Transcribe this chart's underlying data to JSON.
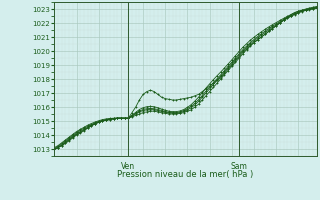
{
  "title": "Pression niveau de la mer( hPa )",
  "ylim": [
    1012.5,
    1023.5
  ],
  "yticks": [
    1013,
    1014,
    1015,
    1016,
    1017,
    1018,
    1019,
    1020,
    1021,
    1022,
    1023
  ],
  "background_color": "#d4eeed",
  "grid_color_minor": "#c8ddd8",
  "grid_color_major": "#aac8be",
  "line_color": "#1a5c1a",
  "ven_label": "Ven",
  "sam_label": "Sam",
  "xlabel": "Pression niveau de la mer( hPa )",
  "n_points": 72,
  "ven_idx": 20,
  "sam_idx": 50,
  "series": [
    [
      1013.0,
      1013.1,
      1013.25,
      1013.4,
      1013.6,
      1013.8,
      1014.0,
      1014.15,
      1014.3,
      1014.5,
      1014.65,
      1014.8,
      1014.9,
      1015.0,
      1015.05,
      1015.1,
      1015.15,
      1015.2,
      1015.2,
      1015.2,
      1015.2,
      1015.6,
      1016.0,
      1016.5,
      1016.9,
      1017.1,
      1017.2,
      1017.1,
      1016.9,
      1016.7,
      1016.6,
      1016.55,
      1016.5,
      1016.5,
      1016.55,
      1016.6,
      1016.65,
      1016.7,
      1016.8,
      1016.9,
      1017.1,
      1017.3,
      1017.5,
      1017.7,
      1017.9,
      1018.1,
      1018.4,
      1018.7,
      1019.0,
      1019.3,
      1019.6,
      1019.9,
      1020.15,
      1020.4,
      1020.6,
      1020.8,
      1021.0,
      1021.2,
      1021.4,
      1021.6,
      1021.8,
      1022.0,
      1022.2,
      1022.4,
      1022.6,
      1022.75,
      1022.85,
      1022.9,
      1022.95,
      1023.0,
      1023.05,
      1023.1
    ],
    [
      1013.0,
      1013.1,
      1013.25,
      1013.45,
      1013.65,
      1013.85,
      1014.05,
      1014.2,
      1014.35,
      1014.5,
      1014.65,
      1014.8,
      1014.9,
      1015.0,
      1015.05,
      1015.1,
      1015.15,
      1015.2,
      1015.2,
      1015.2,
      1015.2,
      1015.3,
      1015.4,
      1015.5,
      1015.6,
      1015.65,
      1015.7,
      1015.7,
      1015.65,
      1015.6,
      1015.55,
      1015.5,
      1015.5,
      1015.5,
      1015.55,
      1015.6,
      1015.7,
      1015.8,
      1016.0,
      1016.2,
      1016.5,
      1016.8,
      1017.1,
      1017.4,
      1017.7,
      1018.0,
      1018.3,
      1018.6,
      1018.9,
      1019.2,
      1019.5,
      1019.8,
      1020.1,
      1020.35,
      1020.6,
      1020.8,
      1021.0,
      1021.2,
      1021.4,
      1021.6,
      1021.8,
      1022.0,
      1022.2,
      1022.35,
      1022.5,
      1022.65,
      1022.75,
      1022.85,
      1022.9,
      1022.95,
      1023.0,
      1023.05
    ],
    [
      1013.0,
      1013.1,
      1013.3,
      1013.5,
      1013.7,
      1013.9,
      1014.1,
      1014.25,
      1014.4,
      1014.55,
      1014.7,
      1014.82,
      1014.93,
      1015.02,
      1015.08,
      1015.13,
      1015.17,
      1015.2,
      1015.2,
      1015.2,
      1015.2,
      1015.35,
      1015.5,
      1015.65,
      1015.75,
      1015.8,
      1015.82,
      1015.8,
      1015.75,
      1015.68,
      1015.62,
      1015.58,
      1015.55,
      1015.55,
      1015.6,
      1015.68,
      1015.8,
      1015.95,
      1016.15,
      1016.4,
      1016.7,
      1017.0,
      1017.3,
      1017.6,
      1017.9,
      1018.2,
      1018.5,
      1018.8,
      1019.1,
      1019.4,
      1019.7,
      1020.0,
      1020.25,
      1020.5,
      1020.72,
      1020.93,
      1021.13,
      1021.32,
      1021.5,
      1021.68,
      1021.85,
      1022.02,
      1022.18,
      1022.33,
      1022.47,
      1022.6,
      1022.72,
      1022.82,
      1022.9,
      1022.97,
      1023.03,
      1023.08
    ],
    [
      1013.05,
      1013.18,
      1013.38,
      1013.58,
      1013.78,
      1013.98,
      1014.18,
      1014.33,
      1014.48,
      1014.62,
      1014.75,
      1014.87,
      1014.97,
      1015.05,
      1015.1,
      1015.15,
      1015.18,
      1015.2,
      1015.2,
      1015.2,
      1015.2,
      1015.38,
      1015.55,
      1015.72,
      1015.82,
      1015.88,
      1015.9,
      1015.88,
      1015.82,
      1015.75,
      1015.68,
      1015.62,
      1015.6,
      1015.6,
      1015.65,
      1015.75,
      1015.88,
      1016.05,
      1016.27,
      1016.52,
      1016.82,
      1017.13,
      1017.43,
      1017.73,
      1018.02,
      1018.3,
      1018.6,
      1018.9,
      1019.2,
      1019.5,
      1019.8,
      1020.1,
      1020.35,
      1020.6,
      1020.82,
      1021.03,
      1021.23,
      1021.42,
      1021.6,
      1021.77,
      1021.93,
      1022.1,
      1022.25,
      1022.4,
      1022.53,
      1022.65,
      1022.77,
      1022.87,
      1022.95,
      1023.02,
      1023.08,
      1023.13
    ],
    [
      1013.1,
      1013.25,
      1013.45,
      1013.65,
      1013.85,
      1014.05,
      1014.25,
      1014.4,
      1014.55,
      1014.7,
      1014.82,
      1014.93,
      1015.02,
      1015.1,
      1015.15,
      1015.18,
      1015.2,
      1015.22,
      1015.22,
      1015.22,
      1015.22,
      1015.42,
      1015.62,
      1015.82,
      1015.95,
      1016.02,
      1016.05,
      1016.02,
      1015.95,
      1015.85,
      1015.77,
      1015.7,
      1015.67,
      1015.67,
      1015.72,
      1015.82,
      1015.97,
      1016.17,
      1016.42,
      1016.7,
      1017.02,
      1017.35,
      1017.65,
      1017.95,
      1018.23,
      1018.5,
      1018.78,
      1019.07,
      1019.37,
      1019.67,
      1019.97,
      1020.27,
      1020.52,
      1020.77,
      1020.98,
      1021.18,
      1021.37,
      1021.55,
      1021.72,
      1021.88,
      1022.03,
      1022.18,
      1022.33,
      1022.47,
      1022.6,
      1022.72,
      1022.83,
      1022.92,
      1023.0,
      1023.07,
      1023.13,
      1023.18
    ]
  ]
}
